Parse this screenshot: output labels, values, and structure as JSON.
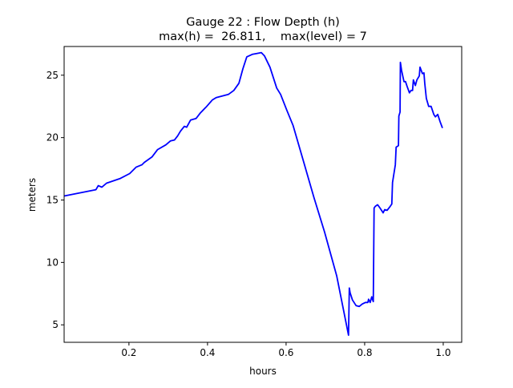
{
  "chart_data": {
    "type": "line",
    "title": "Gauge 22 : Flow Depth (h)",
    "subtitle": "max(h) =  26.811,    max(level) = 7",
    "xlabel": "hours",
    "ylabel": "meters",
    "xlim": [
      0.035,
      1.047
    ],
    "ylim": [
      3.6,
      27.3
    ],
    "xticks": [
      0.2,
      0.4,
      0.6,
      0.8,
      1.0
    ],
    "xtick_labels": [
      "0.2",
      "0.4",
      "0.6",
      "0.8",
      "1.0"
    ],
    "yticks": [
      5,
      10,
      15,
      20,
      25
    ],
    "ytick_labels": [
      "5",
      "10",
      "15",
      "20",
      "25"
    ],
    "grid": false,
    "color": "#0000ff",
    "x": [
      0.035,
      0.116,
      0.122,
      0.131,
      0.143,
      0.178,
      0.202,
      0.218,
      0.233,
      0.239,
      0.259,
      0.273,
      0.294,
      0.306,
      0.316,
      0.324,
      0.331,
      0.341,
      0.347,
      0.357,
      0.371,
      0.382,
      0.398,
      0.412,
      0.422,
      0.453,
      0.467,
      0.48,
      0.49,
      0.5,
      0.514,
      0.524,
      0.537,
      0.545,
      0.559,
      0.576,
      0.586,
      0.602,
      0.618,
      0.641,
      0.671,
      0.698,
      0.729,
      0.759,
      0.761,
      0.763,
      0.769,
      0.778,
      0.786,
      0.794,
      0.802,
      0.808,
      0.81,
      0.814,
      0.818,
      0.822,
      0.824,
      0.827,
      0.833,
      0.839,
      0.847,
      0.851,
      0.857,
      0.865,
      0.869,
      0.871,
      0.878,
      0.88,
      0.886,
      0.887,
      0.89,
      0.891,
      0.894,
      0.9,
      0.904,
      0.908,
      0.914,
      0.918,
      0.922,
      0.924,
      0.929,
      0.933,
      0.939,
      0.941,
      0.947,
      0.951,
      0.953,
      0.957,
      0.963,
      0.969,
      0.976,
      0.98,
      0.986,
      0.992,
      0.998
    ],
    "y": [
      15.32,
      15.83,
      16.15,
      16.03,
      16.35,
      16.73,
      17.12,
      17.63,
      17.82,
      18.01,
      18.46,
      19.04,
      19.42,
      19.74,
      19.81,
      20.13,
      20.51,
      20.9,
      20.83,
      21.41,
      21.54,
      21.99,
      22.5,
      23.01,
      23.21,
      23.46,
      23.78,
      24.36,
      25.51,
      26.47,
      26.67,
      26.73,
      26.81,
      26.54,
      25.64,
      23.97,
      23.46,
      22.18,
      20.96,
      18.46,
      15.19,
      12.44,
      8.91,
      4.17,
      7.95,
      7.56,
      6.99,
      6.54,
      6.47,
      6.67,
      6.79,
      6.79,
      7.05,
      6.79,
      7.24,
      6.86,
      14.36,
      14.49,
      14.62,
      14.36,
      13.97,
      14.23,
      14.17,
      14.49,
      14.68,
      16.41,
      17.82,
      19.23,
      19.36,
      21.73,
      22.05,
      26.03,
      25.38,
      24.49,
      24.49,
      24.1,
      23.59,
      23.78,
      23.78,
      24.62,
      24.17,
      24.62,
      24.94,
      25.64,
      25.13,
      25.19,
      24.36,
      23.14,
      22.5,
      22.5,
      21.86,
      21.67,
      21.86,
      21.28,
      20.77
    ]
  }
}
